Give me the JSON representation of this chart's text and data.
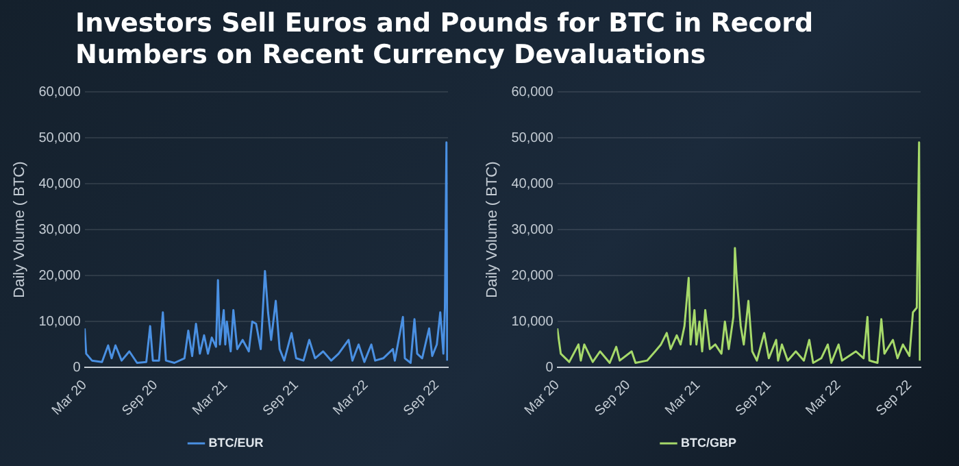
{
  "chart_data": [
    {
      "type": "line",
      "title": "Investors Sell Euros and Pounds for BTC in Record Numbers on Recent Currency Devaluations",
      "ylabel": "Daily Volume ( BTC)",
      "xlim": [
        "2020-03-01",
        "2022-09-30"
      ],
      "xticks": [
        {
          "value": "2020-03-01",
          "label": "Mar 20"
        },
        {
          "value": "2020-09-01",
          "label": "Sep 20"
        },
        {
          "value": "2021-03-01",
          "label": "Mar 21"
        },
        {
          "value": "2021-09-01",
          "label": "Sep 21"
        },
        {
          "value": "2022-03-01",
          "label": "Mar 22"
        },
        {
          "value": "2022-09-01",
          "label": "Sep 22"
        }
      ],
      "ylim": [
        0,
        60000
      ],
      "yticks": [
        {
          "value": 0,
          "label": "0"
        },
        {
          "value": 10000,
          "label": "10,000"
        },
        {
          "value": 20000,
          "label": "20,000"
        },
        {
          "value": 30000,
          "label": "30,000"
        },
        {
          "value": 40000,
          "label": "40,000"
        },
        {
          "value": 50000,
          "label": "50,000"
        },
        {
          "value": 60000,
          "label": "60,000"
        }
      ],
      "grid": "y",
      "legend": "bottom",
      "marker": "none",
      "line_style": "solid",
      "series": [
        {
          "name": "BTC/EUR",
          "color": "#4a90e2",
          "x": [
            "2020-03-01",
            "2020-03-05",
            "2020-03-20",
            "2020-04-15",
            "2020-05-01",
            "2020-05-10",
            "2020-05-20",
            "2020-06-05",
            "2020-06-25",
            "2020-07-15",
            "2020-08-08",
            "2020-08-18",
            "2020-08-25",
            "2020-09-10",
            "2020-09-20",
            "2020-09-28",
            "2020-10-20",
            "2020-11-15",
            "2020-11-25",
            "2020-12-05",
            "2020-12-15",
            "2020-12-25",
            "2021-01-05",
            "2021-01-15",
            "2021-01-25",
            "2021-02-05",
            "2021-02-10",
            "2021-02-15",
            "2021-02-25",
            "2021-03-01",
            "2021-03-05",
            "2021-03-15",
            "2021-03-22",
            "2021-04-01",
            "2021-04-15",
            "2021-05-01",
            "2021-05-10",
            "2021-05-20",
            "2021-06-01",
            "2021-06-12",
            "2021-06-20",
            "2021-06-28",
            "2021-07-10",
            "2021-07-20",
            "2021-08-01",
            "2021-08-20",
            "2021-09-01",
            "2021-09-20",
            "2021-10-05",
            "2021-10-20",
            "2021-11-10",
            "2021-12-01",
            "2021-12-20",
            "2022-01-15",
            "2022-01-25",
            "2022-02-10",
            "2022-02-25",
            "2022-03-15",
            "2022-03-25",
            "2022-04-15",
            "2022-05-10",
            "2022-05-15",
            "2022-06-05",
            "2022-06-10",
            "2022-06-25",
            "2022-07-05",
            "2022-07-12",
            "2022-07-25",
            "2022-08-05",
            "2022-08-12",
            "2022-08-20",
            "2022-09-01",
            "2022-09-10",
            "2022-09-18",
            "2022-09-22",
            "2022-09-26",
            "2022-09-28"
          ],
          "values": [
            8500,
            3000,
            1500,
            1200,
            4800,
            2000,
            4800,
            1500,
            3500,
            1000,
            1200,
            9000,
            1500,
            1500,
            12000,
            1500,
            1000,
            2000,
            8000,
            2500,
            9500,
            3000,
            7000,
            3000,
            6500,
            4500,
            19000,
            5000,
            12500,
            5000,
            10000,
            3500,
            12500,
            4000,
            6000,
            3500,
            10000,
            9500,
            4000,
            21000,
            12000,
            6000,
            14500,
            4000,
            1500,
            7500,
            2000,
            1500,
            6000,
            2000,
            3500,
            1500,
            3000,
            6000,
            1500,
            5000,
            1200,
            5000,
            1500,
            2000,
            4000,
            1500,
            11000,
            2000,
            1000,
            10500,
            3000,
            2000,
            6000,
            8500,
            2500,
            5000,
            12000,
            3000,
            13000,
            49000,
            1500
          ]
        }
      ]
    },
    {
      "type": "line",
      "ylabel": "Daily Volume ( BTC)",
      "xlim": [
        "2020-03-01",
        "2022-09-30"
      ],
      "xticks": [
        {
          "value": "2020-03-01",
          "label": "Mar 20"
        },
        {
          "value": "2020-09-01",
          "label": "Sep 20"
        },
        {
          "value": "2021-03-01",
          "label": "Mar 21"
        },
        {
          "value": "2021-09-01",
          "label": "Sep 21"
        },
        {
          "value": "2022-03-01",
          "label": "Mar 22"
        },
        {
          "value": "2022-09-01",
          "label": "Sep 22"
        }
      ],
      "ylim": [
        0,
        60000
      ],
      "yticks": [
        {
          "value": 0,
          "label": "0"
        },
        {
          "value": 10000,
          "label": "10,000"
        },
        {
          "value": 20000,
          "label": "20,000"
        },
        {
          "value": 30000,
          "label": "30,000"
        },
        {
          "value": 40000,
          "label": "40,000"
        },
        {
          "value": 50000,
          "label": "50,000"
        },
        {
          "value": 60000,
          "label": "60,000"
        }
      ],
      "grid": "y",
      "legend": "bottom",
      "marker": "none",
      "line_style": "solid",
      "series": [
        {
          "name": "BTC/GBP",
          "color": "#a6d96a",
          "x": [
            "2020-03-01",
            "2020-03-10",
            "2020-04-01",
            "2020-04-25",
            "2020-05-01",
            "2020-05-10",
            "2020-06-01",
            "2020-06-20",
            "2020-07-15",
            "2020-08-01",
            "2020-08-10",
            "2020-09-10",
            "2020-09-20",
            "2020-10-20",
            "2020-11-10",
            "2020-11-25",
            "2020-12-10",
            "2020-12-20",
            "2021-01-05",
            "2021-01-15",
            "2021-01-25",
            "2021-02-05",
            "2021-02-10",
            "2021-02-20",
            "2021-02-25",
            "2021-03-05",
            "2021-03-12",
            "2021-03-20",
            "2021-04-01",
            "2021-04-15",
            "2021-05-01",
            "2021-05-10",
            "2021-05-20",
            "2021-06-01",
            "2021-06-05",
            "2021-06-10",
            "2021-06-20",
            "2021-06-28",
            "2021-07-10",
            "2021-07-20",
            "2021-08-01",
            "2021-08-20",
            "2021-09-01",
            "2021-09-20",
            "2021-09-25",
            "2021-10-05",
            "2021-10-20",
            "2021-11-10",
            "2021-12-01",
            "2021-12-15",
            "2021-12-25",
            "2022-01-15",
            "2022-02-01",
            "2022-02-10",
            "2022-03-01",
            "2022-03-10",
            "2022-04-15",
            "2022-05-05",
            "2022-05-15",
            "2022-05-20",
            "2022-06-10",
            "2022-06-20",
            "2022-06-28",
            "2022-07-20",
            "2022-08-01",
            "2022-08-15",
            "2022-09-01",
            "2022-09-10",
            "2022-09-20",
            "2022-09-26",
            "2022-09-28"
          ],
          "values": [
            8500,
            3000,
            1200,
            5000,
            1500,
            5000,
            1200,
            3500,
            1000,
            4500,
            1500,
            3500,
            1000,
            1500,
            3500,
            5000,
            7500,
            4000,
            7000,
            5000,
            9000,
            19500,
            5000,
            12500,
            5000,
            10000,
            3500,
            12500,
            4000,
            5000,
            3000,
            10000,
            4000,
            11000,
            26000,
            19000,
            9000,
            5000,
            14500,
            3500,
            1500,
            7500,
            2000,
            6000,
            1500,
            5000,
            1500,
            3500,
            1500,
            6000,
            1000,
            2000,
            5000,
            1000,
            5000,
            1500,
            3500,
            2000,
            11000,
            1500,
            1000,
            10500,
            3000,
            6000,
            2000,
            5000,
            2500,
            12000,
            13000,
            49000,
            1500
          ]
        }
      ]
    }
  ]
}
